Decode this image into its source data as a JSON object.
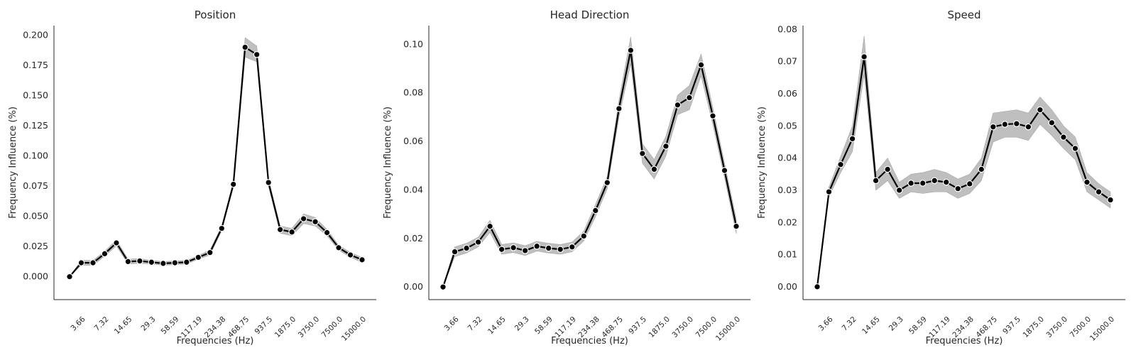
{
  "chart_data": [
    {
      "type": "line",
      "title": "Position",
      "xlabel": "Frequencies (Hz)",
      "ylabel": "Frequency Influence (%)",
      "ylim": [
        -0.019,
        0.208
      ],
      "yticks": [
        "0.000",
        "0.025",
        "0.050",
        "0.075",
        "0.100",
        "0.125",
        "0.150",
        "0.175",
        "0.200"
      ],
      "xtick_labels": [
        "3.66",
        "7.32",
        "14.65",
        "29.3",
        "58.59",
        "117.19",
        "234.38",
        "468.75",
        "937.5",
        "1875.0",
        "3750.0",
        "7500.0",
        "15000.0"
      ],
      "grid": false,
      "values": [
        0.0,
        0.0115,
        0.0115,
        0.019,
        0.028,
        0.0125,
        0.013,
        0.012,
        0.011,
        0.0115,
        0.012,
        0.016,
        0.02,
        0.04,
        0.0765,
        0.19,
        0.184,
        0.078,
        0.039,
        0.037,
        0.048,
        0.0455,
        0.0365,
        0.024,
        0.018,
        0.014
      ],
      "band": [
        [
          0.0,
          0.0
        ],
        [
          0.0095,
          0.0135
        ],
        [
          0.0095,
          0.0135
        ],
        [
          0.017,
          0.021
        ],
        [
          0.0255,
          0.0305
        ],
        [
          0.0105,
          0.0145
        ],
        [
          0.011,
          0.015
        ],
        [
          0.0105,
          0.0135
        ],
        [
          0.0095,
          0.0125
        ],
        [
          0.01,
          0.013
        ],
        [
          0.0105,
          0.0135
        ],
        [
          0.0145,
          0.0175
        ],
        [
          0.018,
          0.022
        ],
        [
          0.038,
          0.042
        ],
        [
          0.074,
          0.079
        ],
        [
          0.182,
          0.198
        ],
        [
          0.178,
          0.191
        ],
        [
          0.075,
          0.081
        ],
        [
          0.036,
          0.042
        ],
        [
          0.034,
          0.04
        ],
        [
          0.044,
          0.052
        ],
        [
          0.042,
          0.049
        ],
        [
          0.034,
          0.039
        ],
        [
          0.022,
          0.026
        ],
        [
          0.016,
          0.02
        ],
        [
          0.012,
          0.016
        ]
      ]
    },
    {
      "type": "line",
      "title": "Head Direction",
      "xlabel": "Frequencies (Hz)",
      "ylabel": "Frequency Influence (%)",
      "ylim": [
        -0.0052,
        0.1077
      ],
      "yticks": [
        "0.00",
        "0.02",
        "0.04",
        "0.06",
        "0.08",
        "0.10"
      ],
      "xtick_labels": [
        "3.66",
        "7.32",
        "14.65",
        "29.3",
        "58.59",
        "117.19",
        "234.38",
        "468.75",
        "937.5",
        "1875.0",
        "3750.0",
        "7500.0",
        "15000.0"
      ],
      "grid": false,
      "values": [
        0.0,
        0.0145,
        0.016,
        0.0185,
        0.025,
        0.0155,
        0.0162,
        0.015,
        0.0168,
        0.016,
        0.0155,
        0.0165,
        0.021,
        0.0315,
        0.043,
        0.0735,
        0.0975,
        0.055,
        0.0485,
        0.058,
        0.075,
        0.078,
        0.0915,
        0.0705,
        0.048,
        0.025
      ],
      "band": [
        [
          0.0,
          0.0
        ],
        [
          0.0125,
          0.0165
        ],
        [
          0.014,
          0.018
        ],
        [
          0.0165,
          0.0205
        ],
        [
          0.0225,
          0.0275
        ],
        [
          0.0135,
          0.0175
        ],
        [
          0.0142,
          0.0182
        ],
        [
          0.013,
          0.017
        ],
        [
          0.0148,
          0.0188
        ],
        [
          0.014,
          0.018
        ],
        [
          0.0135,
          0.0175
        ],
        [
          0.0145,
          0.0185
        ],
        [
          0.019,
          0.023
        ],
        [
          0.029,
          0.034
        ],
        [
          0.0405,
          0.0455
        ],
        [
          0.07,
          0.077
        ],
        [
          0.092,
          0.103
        ],
        [
          0.051,
          0.059
        ],
        [
          0.0445,
          0.0525
        ],
        [
          0.054,
          0.062
        ],
        [
          0.071,
          0.079
        ],
        [
          0.073,
          0.083
        ],
        [
          0.087,
          0.096
        ],
        [
          0.067,
          0.074
        ],
        [
          0.045,
          0.051
        ],
        [
          0.022,
          0.028
        ]
      ]
    },
    {
      "type": "line",
      "title": "Speed",
      "xlabel": "Frequencies (Hz)",
      "ylabel": "Frequency Influence (%)",
      "ylim": [
        -0.004,
        0.0812
      ],
      "yticks": [
        "0.00",
        "0.01",
        "0.02",
        "0.03",
        "0.04",
        "0.05",
        "0.06",
        "0.07",
        "0.08"
      ],
      "xtick_labels": [
        "3.66",
        "7.32",
        "14.65",
        "29.3",
        "58.59",
        "117.19",
        "234.38",
        "468.75",
        "937.5",
        "1875.0",
        "3750.0",
        "7500.0",
        "15000.0"
      ],
      "grid": false,
      "values": [
        0.0,
        0.0295,
        0.038,
        0.046,
        0.0715,
        0.033,
        0.0365,
        0.03,
        0.0322,
        0.0322,
        0.033,
        0.0325,
        0.0305,
        0.032,
        0.0365,
        0.0497,
        0.0505,
        0.0507,
        0.0497,
        0.055,
        0.051,
        0.0465,
        0.043,
        0.0325,
        0.0295,
        0.027
      ],
      "band": [
        [
          0.0,
          0.0
        ],
        [
          0.028,
          0.031
        ],
        [
          0.0355,
          0.0405
        ],
        [
          0.042,
          0.05
        ],
        [
          0.066,
          0.078
        ],
        [
          0.03,
          0.0355
        ],
        [
          0.033,
          0.04
        ],
        [
          0.0275,
          0.0325
        ],
        [
          0.0295,
          0.035
        ],
        [
          0.029,
          0.0355
        ],
        [
          0.0295,
          0.0365
        ],
        [
          0.0295,
          0.0355
        ],
        [
          0.0275,
          0.0335
        ],
        [
          0.029,
          0.035
        ],
        [
          0.033,
          0.04
        ],
        [
          0.045,
          0.054
        ],
        [
          0.0465,
          0.0545
        ],
        [
          0.0465,
          0.055
        ],
        [
          0.0455,
          0.054
        ],
        [
          0.0505,
          0.059
        ],
        [
          0.047,
          0.055
        ],
        [
          0.043,
          0.05
        ],
        [
          0.0395,
          0.0465
        ],
        [
          0.0295,
          0.0355
        ],
        [
          0.027,
          0.032
        ],
        [
          0.0245,
          0.0295
        ]
      ]
    }
  ]
}
